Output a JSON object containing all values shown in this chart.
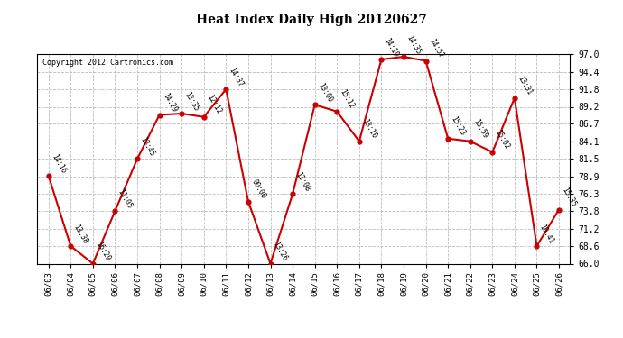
{
  "title": "Heat Index Daily High 20120627",
  "copyright": "Copyright 2012 Cartronics.com",
  "background_color": "#ffffff",
  "line_color": "#cc0000",
  "marker_color": "#cc0000",
  "grid_color": "#bbbbbb",
  "ylim": [
    66.0,
    97.0
  ],
  "yticks": [
    66.0,
    68.6,
    71.2,
    73.8,
    76.3,
    78.9,
    81.5,
    84.1,
    86.7,
    89.2,
    91.8,
    94.4,
    97.0
  ],
  "dates": [
    "06/03",
    "06/04",
    "06/05",
    "06/06",
    "06/07",
    "06/08",
    "06/09",
    "06/10",
    "06/11",
    "06/12",
    "06/13",
    "06/14",
    "06/15",
    "06/16",
    "06/17",
    "06/18",
    "06/19",
    "06/20",
    "06/21",
    "06/22",
    "06/23",
    "06/24",
    "06/25",
    "06/26"
  ],
  "values": [
    79.0,
    68.6,
    66.0,
    73.8,
    81.5,
    88.0,
    88.2,
    87.7,
    91.8,
    75.2,
    66.0,
    76.3,
    89.5,
    88.5,
    84.1,
    96.2,
    96.6,
    96.0,
    84.5,
    84.1,
    82.5,
    90.5,
    68.6,
    74.0
  ],
  "labels": [
    "14:16",
    "13:38",
    "16:29",
    "11:05",
    "13:45",
    "14:29",
    "13:35",
    "12:12",
    "14:37",
    "00:00",
    "13:26",
    "13:08",
    "13:00",
    "15:12",
    "13:10",
    "14:19",
    "14:35",
    "14:57",
    "15:23",
    "15:59",
    "15:02",
    "13:31",
    "10:41",
    "15:35"
  ]
}
